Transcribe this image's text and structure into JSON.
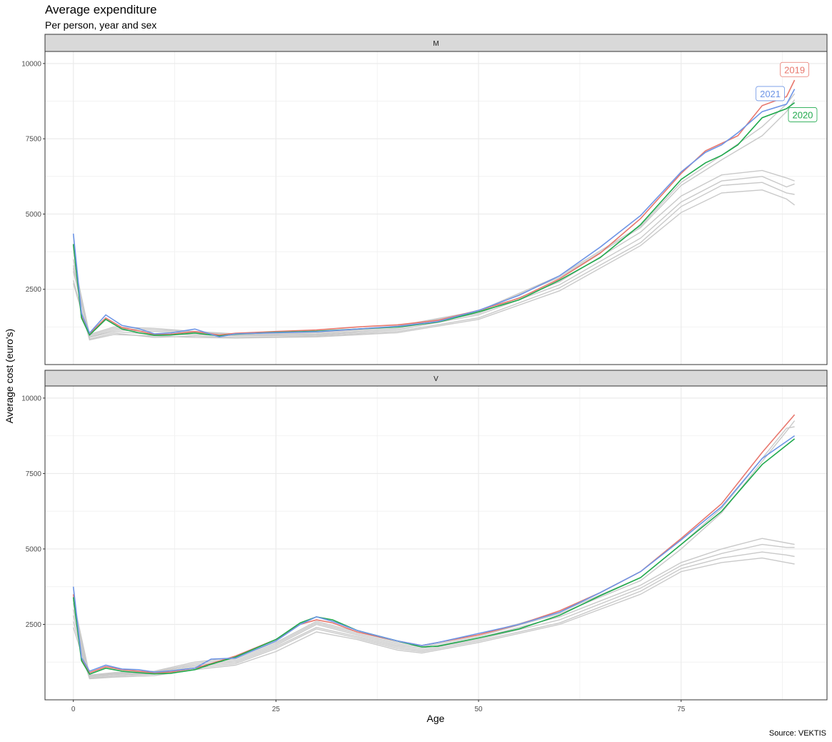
{
  "chart_data": {
    "type": "line",
    "title": "Average expenditure",
    "subtitle": "Per person, year and sex",
    "xlabel": "Age",
    "ylabel": "Average cost (euro's)",
    "caption": "Source: VEKTIS",
    "xlim": [
      -3.5,
      93
    ],
    "ylim": [
      0,
      10400
    ],
    "x_ticks": [
      0,
      25,
      50,
      75
    ],
    "y_ticks": [
      2500,
      5000,
      7500,
      10000
    ],
    "grid": true,
    "legend": "none",
    "colors": {
      "2019": "#e8776d",
      "2020": "#1fa94c",
      "2021": "#6e95e6",
      "other": "#c9c9c9"
    },
    "panels": [
      {
        "strip": "M",
        "highlighted": [
          {
            "name": "2019",
            "color": "#e8776d",
            "x": [
              0,
              1,
              2,
              4,
              6,
              8,
              10,
              12,
              15,
              18,
              20,
              25,
              30,
              35,
              40,
              45,
              50,
              55,
              60,
              65,
              70,
              75,
              78,
              80,
              82,
              85,
              88,
              89
            ],
            "y": [
              4000,
              1600,
              1020,
              1550,
              1230,
              1120,
              1000,
              1010,
              1100,
              980,
              1040,
              1100,
              1150,
              1250,
              1320,
              1470,
              1800,
              2200,
              2850,
              3700,
              4850,
              6350,
              7100,
              7350,
              7600,
              8600,
              8900,
              9450
            ]
          },
          {
            "name": "2020",
            "color": "#1fa94c",
            "x": [
              0,
              1,
              2,
              4,
              6,
              8,
              10,
              12,
              15,
              18,
              20,
              25,
              30,
              35,
              40,
              45,
              50,
              55,
              60,
              65,
              70,
              75,
              78,
              80,
              82,
              85,
              88,
              89
            ],
            "y": [
              4000,
              1550,
              980,
              1500,
              1180,
              1060,
              970,
              980,
              1050,
              950,
              1010,
              1070,
              1110,
              1180,
              1250,
              1410,
              1750,
              2150,
              2800,
              3550,
              4650,
              6150,
              6700,
              6950,
              7300,
              8200,
              8500,
              8700
            ]
          },
          {
            "name": "2021",
            "color": "#6e95e6",
            "x": [
              0,
              1,
              2,
              4,
              6,
              8,
              10,
              12,
              15,
              18,
              20,
              25,
              30,
              35,
              40,
              45,
              50,
              55,
              60,
              65,
              70,
              75,
              78,
              80,
              82,
              85,
              88,
              89
            ],
            "y": [
              4350,
              1700,
              1050,
              1650,
              1300,
              1200,
              1020,
              1050,
              1180,
              920,
              1020,
              1060,
              1090,
              1180,
              1270,
              1430,
              1800,
              2300,
              2950,
              3900,
              4950,
              6400,
              7050,
              7300,
              7700,
              8400,
              8650,
              9150
            ]
          }
        ],
        "background_years": [
          {
            "x": [
              0,
              2,
              5,
              10,
              15,
              20,
              30,
              40,
              50,
              60,
              70,
              75,
              80,
              85,
              88,
              89
            ],
            "y": [
              2800,
              820,
              1000,
              950,
              900,
              880,
              920,
              1060,
              1500,
              2450,
              3950,
              5050,
              5700,
              5800,
              5500,
              5300
            ]
          },
          {
            "x": [
              0,
              2,
              5,
              10,
              15,
              20,
              30,
              40,
              50,
              60,
              70,
              75,
              80,
              85,
              88,
              89
            ],
            "y": [
              2700,
              850,
              1050,
              900,
              950,
              900,
              950,
              1100,
              1550,
              2550,
              4050,
              5250,
              5950,
              6050,
              5700,
              5650
            ]
          },
          {
            "x": [
              0,
              2,
              5,
              10,
              15,
              20,
              30,
              40,
              50,
              60,
              70,
              75,
              80,
              85,
              88,
              89
            ],
            "y": [
              3100,
              900,
              1100,
              1000,
              1000,
              950,
              980,
              1150,
              1650,
              2650,
              4200,
              5400,
              6100,
              6250,
              5900,
              6000
            ]
          },
          {
            "x": [
              0,
              2,
              5,
              10,
              15,
              20,
              30,
              40,
              50,
              60,
              70,
              75,
              80,
              85,
              88,
              89
            ],
            "y": [
              3200,
              920,
              1150,
              1100,
              1050,
              970,
              1010,
              1200,
              1700,
              2750,
              4400,
              5600,
              6300,
              6450,
              6200,
              6100
            ]
          },
          {
            "x": [
              0,
              2,
              5,
              10,
              15,
              20,
              30,
              40,
              50,
              60,
              70,
              75,
              80,
              85,
              88,
              89
            ],
            "y": [
              3300,
              960,
              1200,
              1150,
              1080,
              1000,
              1050,
              1250,
              1750,
              2900,
              4550,
              5950,
              6800,
              7600,
              8400,
              8800
            ]
          },
          {
            "x": [
              0,
              2,
              5,
              10,
              15,
              20,
              30,
              40,
              50,
              60,
              70,
              75,
              80,
              85,
              88,
              89
            ],
            "y": [
              3500,
              1000,
              1250,
              1200,
              1100,
              1020,
              1080,
              1280,
              1780,
              2950,
              4600,
              6050,
              6950,
              7900,
              8650,
              9000
            ]
          }
        ],
        "labels": [
          {
            "text": "2019",
            "x": 89,
            "y": 9800,
            "color": "#e8776d"
          },
          {
            "text": "2021",
            "x": 86,
            "y": 9000,
            "color": "#6e95e6"
          },
          {
            "text": "2020",
            "x": 90,
            "y": 8300,
            "color": "#1fa94c"
          }
        ]
      },
      {
        "strip": "V",
        "highlighted": [
          {
            "name": "2019",
            "color": "#e8776d",
            "x": [
              0,
              1,
              2,
              4,
              6,
              8,
              10,
              12,
              15,
              17,
              20,
              25,
              28,
              30,
              32,
              35,
              40,
              43,
              45,
              50,
              55,
              60,
              65,
              70,
              75,
              80,
              85,
              89
            ],
            "y": [
              3500,
              1350,
              900,
              1100,
              1000,
              950,
              900,
              920,
              1050,
              1200,
              1450,
              2000,
              2500,
              2650,
              2550,
              2250,
              1950,
              1800,
              1900,
              2150,
              2500,
              2950,
              3550,
              4250,
              5350,
              6500,
              8200,
              9450
            ]
          },
          {
            "name": "2020",
            "color": "#1fa94c",
            "x": [
              0,
              1,
              2,
              4,
              6,
              8,
              10,
              12,
              15,
              17,
              20,
              25,
              28,
              30,
              32,
              35,
              40,
              43,
              45,
              50,
              55,
              60,
              65,
              70,
              75,
              80,
              85,
              89
            ],
            "y": [
              3400,
              1300,
              850,
              1050,
              950,
              900,
              860,
              880,
              1000,
              1180,
              1420,
              2000,
              2550,
              2750,
              2650,
              2300,
              1950,
              1750,
              1780,
              2050,
              2350,
              2800,
              3450,
              4050,
              5150,
              6250,
              7800,
              8650
            ]
          },
          {
            "name": "2021",
            "color": "#6e95e6",
            "x": [
              0,
              1,
              2,
              4,
              6,
              8,
              10,
              12,
              15,
              17,
              20,
              25,
              28,
              30,
              32,
              35,
              40,
              43,
              45,
              50,
              55,
              60,
              65,
              70,
              75,
              80,
              85,
              89
            ],
            "y": [
              3750,
              1400,
              950,
              1150,
              1020,
              1000,
              920,
              960,
              1050,
              1350,
              1380,
              1950,
              2500,
              2750,
              2600,
              2300,
              1950,
              1800,
              1900,
              2200,
              2500,
              2900,
              3550,
              4250,
              5300,
              6400,
              8000,
              8750
            ]
          }
        ],
        "background_years": [
          {
            "x": [
              0,
              2,
              5,
              10,
              15,
              20,
              25,
              30,
              35,
              40,
              43,
              50,
              60,
              70,
              75,
              80,
              85,
              88,
              89
            ],
            "y": [
              2400,
              700,
              750,
              800,
              1000,
              1150,
              1600,
              2250,
              2000,
              1650,
              1550,
              1900,
              2500,
              3500,
              4250,
              4550,
              4700,
              4550,
              4500
            ]
          },
          {
            "x": [
              0,
              2,
              5,
              10,
              15,
              20,
              25,
              30,
              35,
              40,
              43,
              50,
              60,
              70,
              75,
              80,
              85,
              88,
              89
            ],
            "y": [
              2600,
              720,
              780,
              850,
              1050,
              1200,
              1700,
              2350,
              2050,
              1700,
              1600,
              1950,
              2550,
              3600,
              4350,
              4700,
              4900,
              4800,
              4750
            ]
          },
          {
            "x": [
              0,
              2,
              5,
              10,
              15,
              20,
              25,
              30,
              35,
              40,
              43,
              50,
              60,
              70,
              75,
              80,
              85,
              88,
              89
            ],
            "y": [
              2800,
              750,
              820,
              880,
              1100,
              1250,
              1750,
              2400,
              2100,
              1750,
              1650,
              2000,
              2650,
              3700,
              4450,
              4850,
              5150,
              5050,
              5050
            ]
          },
          {
            "x": [
              0,
              2,
              5,
              10,
              15,
              20,
              25,
              30,
              35,
              40,
              43,
              50,
              60,
              70,
              75,
              80,
              85,
              88,
              89
            ],
            "y": [
              3000,
              780,
              850,
              900,
              1150,
              1300,
              1800,
              2500,
              2150,
              1800,
              1700,
              2050,
              2750,
              3800,
              4550,
              5000,
              5350,
              5200,
              5150
            ]
          },
          {
            "x": [
              0,
              2,
              5,
              10,
              15,
              20,
              25,
              30,
              35,
              40,
              43,
              50,
              60,
              70,
              75,
              80,
              85,
              88,
              89
            ],
            "y": [
              3200,
              800,
              880,
              920,
              1200,
              1350,
              1850,
              2550,
              2200,
              1850,
              1750,
              2100,
              2850,
              3950,
              5000,
              6200,
              7900,
              8900,
              9250
            ]
          },
          {
            "x": [
              0,
              2,
              5,
              10,
              15,
              20,
              25,
              30,
              35,
              40,
              43,
              50,
              60,
              70,
              75,
              80,
              85,
              88,
              89
            ],
            "y": [
              3300,
              820,
              900,
              950,
              1250,
              1400,
              1900,
              2600,
              2250,
              1900,
              1800,
              2150,
              2900,
              4050,
              5150,
              6350,
              8000,
              9000,
              9050
            ]
          }
        ],
        "labels": []
      }
    ]
  }
}
